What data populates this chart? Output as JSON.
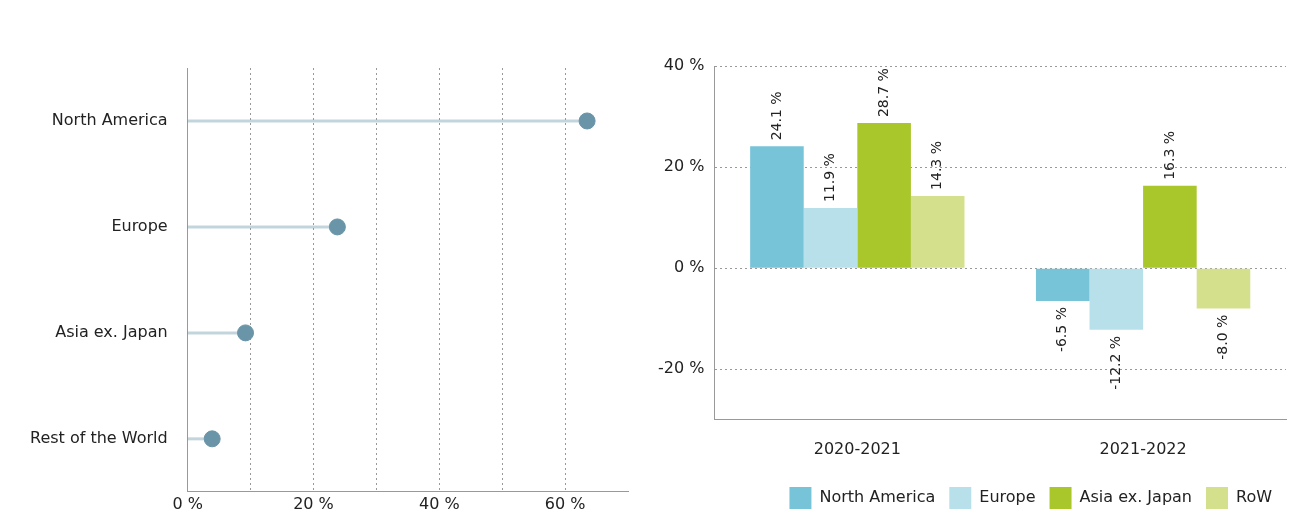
{
  "chart_data": [
    {
      "type": "lollipop",
      "orientation": "horizontal",
      "categories": [
        "North America",
        "Europe",
        "Asia ex. Japan",
        "Rest of the World"
      ],
      "series": [
        {
          "color": "#6a95a8",
          "values": [
            63.5,
            23.8,
            9.2,
            3.9
          ]
        }
      ],
      "xlim": [
        0,
        70
      ],
      "xticks": [
        {
          "value": 0,
          "label": "0 %"
        },
        {
          "value": 10,
          "label": null
        },
        {
          "value": 20,
          "label": "20 %"
        },
        {
          "value": 30,
          "label": null
        },
        {
          "value": 40,
          "label": "40 %"
        },
        {
          "value": 50,
          "label": null
        },
        {
          "value": 60,
          "label": "60 %"
        }
      ],
      "grid": "x",
      "legend": false
    },
    {
      "type": "bar",
      "categories": [
        "2020-2021",
        "2021-2022"
      ],
      "series": [
        {
          "name": "North America",
          "color": "#77c4d9",
          "values": [
            24.1,
            -6.5
          ],
          "value_labels": [
            "24.1 %",
            "-6.5 %"
          ]
        },
        {
          "name": "Europe",
          "color": "#b8e0ea",
          "values": [
            11.9,
            -12.2
          ],
          "value_labels": [
            "11.9 %",
            "-12.2 %"
          ]
        },
        {
          "name": "Asia ex. Japan",
          "color": "#a9c62b",
          "values": [
            28.7,
            16.3
          ],
          "value_labels": [
            "28.7 %",
            "16.3 %"
          ]
        },
        {
          "name": "RoW",
          "color": "#d5e08c",
          "values": [
            14.3,
            -8.0
          ],
          "value_labels": [
            "14.3 %",
            "-8.0 %"
          ]
        }
      ],
      "ylim": [
        -30,
        40
      ],
      "yticks": [
        {
          "value": -20,
          "label": "-20 %"
        },
        {
          "value": 0,
          "label": "0 %"
        },
        {
          "value": 20,
          "label": "20 %"
        },
        {
          "value": 40,
          "label": "40 %"
        }
      ],
      "grid": "y",
      "legend": "bottom"
    }
  ]
}
